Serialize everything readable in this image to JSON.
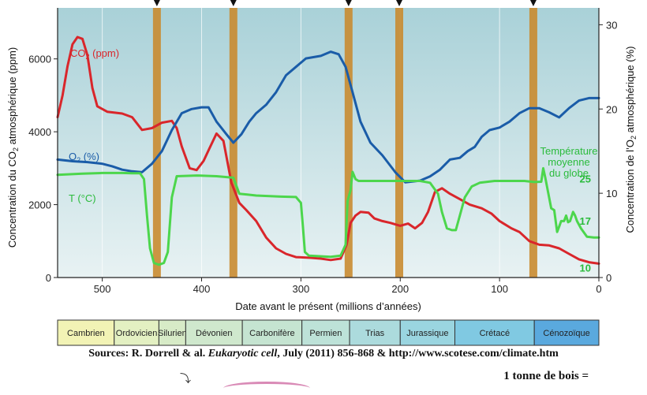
{
  "chart_data": {
    "type": "line",
    "x_axis": {
      "label": "Date avant le présent (millions d’années)",
      "range": [
        545,
        0
      ],
      "ticks": [
        500,
        400,
        300,
        200,
        100,
        0
      ]
    },
    "y_left": {
      "label_main": "Concentration du CO",
      "label_sub": "2",
      "label_tail": " atmosphérique (ppm)",
      "range": [
        0,
        7400
      ],
      "ticks": [
        0,
        2000,
        4000,
        6000
      ]
    },
    "y_right": {
      "label_main": "Concentration de l’O",
      "label_sub": "2",
      "label_tail": " atmosphérique (%)",
      "range": [
        0,
        32
      ],
      "ticks": [
        0,
        10,
        20,
        30
      ]
    },
    "series": [
      {
        "name": "CO2 (ppm)",
        "label_main": "CO",
        "label_sub": "2",
        "label_tail": " (ppm)",
        "axis": "left",
        "color": "#d9262b",
        "points": [
          [
            545,
            4400
          ],
          [
            540,
            5000
          ],
          [
            535,
            5800
          ],
          [
            530,
            6400
          ],
          [
            525,
            6600
          ],
          [
            520,
            6550
          ],
          [
            515,
            6100
          ],
          [
            510,
            5200
          ],
          [
            505,
            4700
          ],
          [
            495,
            4550
          ],
          [
            480,
            4500
          ],
          [
            470,
            4400
          ],
          [
            460,
            4050
          ],
          [
            450,
            4100
          ],
          [
            440,
            4250
          ],
          [
            430,
            4300
          ],
          [
            425,
            4100
          ],
          [
            420,
            3600
          ],
          [
            412,
            3000
          ],
          [
            405,
            2950
          ],
          [
            398,
            3200
          ],
          [
            392,
            3550
          ],
          [
            385,
            3950
          ],
          [
            378,
            3750
          ],
          [
            370,
            2600
          ],
          [
            362,
            2050
          ],
          [
            355,
            1850
          ],
          [
            345,
            1550
          ],
          [
            335,
            1100
          ],
          [
            325,
            800
          ],
          [
            315,
            650
          ],
          [
            305,
            560
          ],
          [
            290,
            540
          ],
          [
            280,
            520
          ],
          [
            270,
            480
          ],
          [
            260,
            520
          ],
          [
            254,
            900
          ],
          [
            250,
            1500
          ],
          [
            245,
            1700
          ],
          [
            240,
            1800
          ],
          [
            232,
            1780
          ],
          [
            226,
            1620
          ],
          [
            218,
            1550
          ],
          [
            210,
            1500
          ],
          [
            200,
            1420
          ],
          [
            192,
            1480
          ],
          [
            185,
            1350
          ],
          [
            178,
            1500
          ],
          [
            172,
            1800
          ],
          [
            165,
            2350
          ],
          [
            158,
            2450
          ],
          [
            150,
            2300
          ],
          [
            140,
            2150
          ],
          [
            130,
            2000
          ],
          [
            118,
            1900
          ],
          [
            108,
            1750
          ],
          [
            100,
            1550
          ],
          [
            88,
            1350
          ],
          [
            80,
            1250
          ],
          [
            70,
            1000
          ],
          [
            60,
            900
          ],
          [
            50,
            880
          ],
          [
            40,
            800
          ],
          [
            30,
            650
          ],
          [
            20,
            500
          ],
          [
            10,
            420
          ],
          [
            0,
            380
          ]
        ]
      },
      {
        "name": "O2 (%)",
        "label_main": "O",
        "label_sub": "2",
        "label_tail": " (%)",
        "axis": "right",
        "color": "#1a5ca8",
        "points": [
          [
            545,
            14
          ],
          [
            530,
            13.8
          ],
          [
            515,
            13.7
          ],
          [
            500,
            13.5
          ],
          [
            490,
            13.2
          ],
          [
            480,
            12.8
          ],
          [
            470,
            12.6
          ],
          [
            460,
            12.5
          ],
          [
            450,
            13.5
          ],
          [
            440,
            15
          ],
          [
            430,
            17.5
          ],
          [
            420,
            19.5
          ],
          [
            410,
            20
          ],
          [
            400,
            20.2
          ],
          [
            393,
            20.2
          ],
          [
            385,
            18.5
          ],
          [
            375,
            17
          ],
          [
            368,
            16
          ],
          [
            360,
            17
          ],
          [
            352,
            18.5
          ],
          [
            345,
            19.5
          ],
          [
            335,
            20.5
          ],
          [
            325,
            22
          ],
          [
            315,
            24
          ],
          [
            305,
            25
          ],
          [
            295,
            26
          ],
          [
            280,
            26.3
          ],
          [
            270,
            26.8
          ],
          [
            262,
            26.5
          ],
          [
            255,
            25
          ],
          [
            248,
            22
          ],
          [
            240,
            18.5
          ],
          [
            230,
            16
          ],
          [
            218,
            14.5
          ],
          [
            205,
            12.5
          ],
          [
            195,
            11.3
          ],
          [
            180,
            11.5
          ],
          [
            170,
            12
          ],
          [
            160,
            12.8
          ],
          [
            150,
            14
          ],
          [
            140,
            14.2
          ],
          [
            132,
            15
          ],
          [
            125,
            15.5
          ],
          [
            118,
            16.7
          ],
          [
            110,
            17.5
          ],
          [
            100,
            17.8
          ],
          [
            90,
            18.5
          ],
          [
            80,
            19.5
          ],
          [
            70,
            20.1
          ],
          [
            60,
            20.1
          ],
          [
            50,
            19.6
          ],
          [
            40,
            19
          ],
          [
            30,
            20.1
          ],
          [
            20,
            21
          ],
          [
            10,
            21.3
          ],
          [
            0,
            21.3
          ]
        ]
      },
      {
        "name": "T (°C)",
        "label": "T (°C)",
        "axis": "left",
        "color": "#4cd64c",
        "points": [
          [
            545,
            2820
          ],
          [
            520,
            2850
          ],
          [
            500,
            2870
          ],
          [
            480,
            2870
          ],
          [
            470,
            2860
          ],
          [
            462,
            2860
          ],
          [
            458,
            2700
          ],
          [
            455,
            1700
          ],
          [
            452,
            800
          ],
          [
            448,
            400
          ],
          [
            443,
            350
          ],
          [
            438,
            400
          ],
          [
            434,
            700
          ],
          [
            430,
            2200
          ],
          [
            425,
            2780
          ],
          [
            405,
            2800
          ],
          [
            385,
            2780
          ],
          [
            368,
            2740
          ],
          [
            362,
            2300
          ],
          [
            355,
            2280
          ],
          [
            345,
            2250
          ],
          [
            320,
            2220
          ],
          [
            305,
            2210
          ],
          [
            300,
            2050
          ],
          [
            298,
            1400
          ],
          [
            296,
            700
          ],
          [
            292,
            600
          ],
          [
            270,
            570
          ],
          [
            260,
            600
          ],
          [
            255,
            900
          ],
          [
            253,
            2100
          ],
          [
            250,
            2400
          ],
          [
            248,
            2900
          ],
          [
            245,
            2700
          ],
          [
            242,
            2650
          ],
          [
            235,
            2650
          ],
          [
            225,
            2650
          ],
          [
            215,
            2650
          ],
          [
            200,
            2650
          ],
          [
            190,
            2650
          ],
          [
            180,
            2650
          ],
          [
            170,
            2600
          ],
          [
            162,
            2300
          ],
          [
            158,
            1800
          ],
          [
            153,
            1350
          ],
          [
            148,
            1300
          ],
          [
            144,
            1300
          ],
          [
            140,
            1700
          ],
          [
            135,
            2200
          ],
          [
            128,
            2500
          ],
          [
            120,
            2600
          ],
          [
            105,
            2650
          ],
          [
            90,
            2650
          ],
          [
            75,
            2650
          ],
          [
            65,
            2620
          ],
          [
            58,
            2630
          ],
          [
            56,
            3000
          ],
          [
            54,
            2750
          ],
          [
            48,
            1900
          ],
          [
            45,
            1850
          ],
          [
            42,
            1250
          ],
          [
            40,
            1400
          ],
          [
            38,
            1550
          ],
          [
            35,
            1550
          ],
          [
            33,
            1700
          ],
          [
            31,
            1520
          ],
          [
            29,
            1550
          ],
          [
            26,
            1800
          ],
          [
            24,
            1700
          ],
          [
            22,
            1550
          ],
          [
            18,
            1350
          ],
          [
            12,
            1120
          ],
          [
            5,
            1100
          ],
          [
            0,
            1100
          ]
        ]
      }
    ],
    "temperature_label": {
      "lines": [
        "Température",
        "moyenne",
        "du globe"
      ],
      "color": "#2bbb3c",
      "marks": [
        {
          "label": "25",
          "value": 2720
        },
        {
          "label": "17",
          "value": 1560
        },
        {
          "label": "10",
          "value": 270
        }
      ]
    },
    "extinction_events_ma": [
      445,
      368,
      252,
      201,
      66
    ],
    "extinction_band_color": "#c98b30",
    "periods": [
      {
        "name": "Cambrien",
        "start": 545,
        "end": 488,
        "color": "#f2f3b5"
      },
      {
        "name": "Ordovicien",
        "start": 488,
        "end": 443,
        "color": "#e3f0c2"
      },
      {
        "name": "Silurien",
        "start": 443,
        "end": 416,
        "color": "#d7ebc7"
      },
      {
        "name": "Dévonien",
        "start": 416,
        "end": 359,
        "color": "#cfe8cd"
      },
      {
        "name": "Carbonifère",
        "start": 359,
        "end": 299,
        "color": "#c5e4d1"
      },
      {
        "name": "Permien",
        "start": 299,
        "end": 251,
        "color": "#bde2d8"
      },
      {
        "name": "Trias",
        "start": 251,
        "end": 200,
        "color": "#acdbdd"
      },
      {
        "name": "Jurassique",
        "start": 200,
        "end": 145,
        "color": "#9ad5e0"
      },
      {
        "name": "Crétacé",
        "start": 145,
        "end": 65,
        "color": "#80c9e2"
      },
      {
        "name": "Cénozoïque",
        "start": 65,
        "end": 0,
        "color": "#5aa9de"
      }
    ],
    "background_gradient": [
      "#a9d1d8",
      "#e8f2f3"
    ]
  },
  "source": {
    "prefix": "Sources: R. Dorrell & al. ",
    "journal": "Eukaryotic cell",
    "suffix": ", July (2011) 856-868 & http://www.scotese.com/climate.htm"
  },
  "bottom_note": "1 tonne de bois ="
}
